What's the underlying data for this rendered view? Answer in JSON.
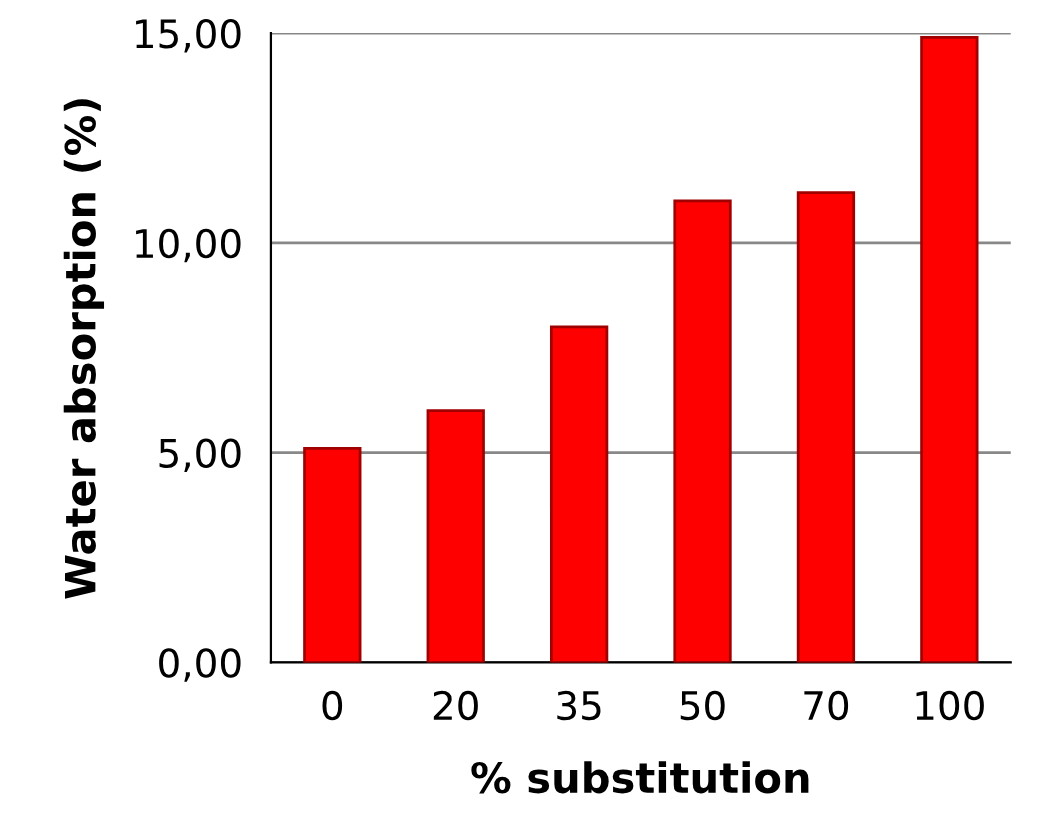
{
  "chart_data": {
    "type": "bar",
    "xlabel": "% substitution",
    "ylabel": "Water absorption (%)",
    "categories": [
      "0",
      "20",
      "35",
      "50",
      "70",
      "100"
    ],
    "values": [
      5.1,
      6.0,
      8.0,
      11.0,
      11.2,
      14.9
    ],
    "color": "#ff0000",
    "ylim": [
      0,
      15
    ],
    "yticks": [
      {
        "value": 0,
        "label": "0,00"
      },
      {
        "value": 5,
        "label": "5,00"
      },
      {
        "value": 10,
        "label": "10,00"
      },
      {
        "value": 15,
        "label": "15,00"
      }
    ],
    "grid": "y"
  }
}
